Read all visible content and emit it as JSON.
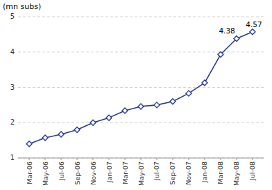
{
  "chart_data": {
    "type": "line",
    "y_label": "(mn subs)",
    "categories": [
      "Mar-06",
      "May-06",
      "Jul-06",
      "Sep-06",
      "Nov-06",
      "Jan-07",
      "Mar-07",
      "May-07",
      "Jul-07",
      "Sep-07",
      "Nov-07",
      "Jan-08",
      "Mar-08",
      "May-08",
      "Jul-08"
    ],
    "values": [
      1.4,
      1.57,
      1.67,
      1.8,
      2.0,
      2.14,
      2.34,
      2.46,
      2.5,
      2.6,
      2.83,
      3.13,
      3.93,
      4.38,
      4.57
    ],
    "annotations": [
      {
        "text": "4.38",
        "x": "May-08",
        "value": 4.38
      },
      {
        "text": "4.57",
        "x": "Jul-08",
        "value": 4.57
      }
    ],
    "color": "#2b3990",
    "marker": "diamond",
    "ylim": [
      1,
      5
    ],
    "yticks": [
      1,
      2,
      3,
      4,
      5
    ],
    "grid": true
  }
}
